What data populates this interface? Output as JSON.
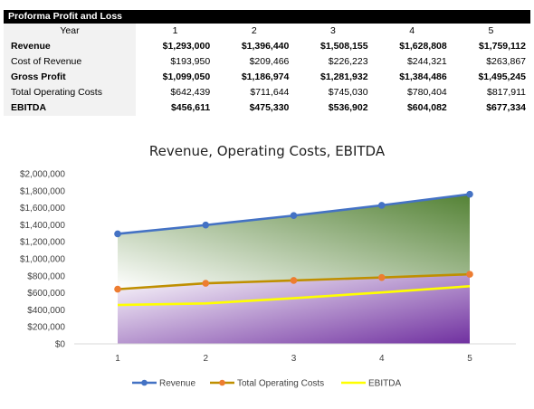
{
  "table": {
    "title": "Proforma Profit and Loss",
    "header_label": "Year",
    "years": [
      "1",
      "2",
      "3",
      "4",
      "5"
    ],
    "rows": [
      {
        "label": "Revenue",
        "bold": true,
        "values": [
          "$1,293,000",
          "$1,396,440",
          "$1,508,155",
          "$1,628,808",
          "$1,759,112"
        ]
      },
      {
        "label": "Cost of Revenue",
        "bold": false,
        "values": [
          "$193,950",
          "$209,466",
          "$226,223",
          "$244,321",
          "$263,867"
        ]
      },
      {
        "label": "Gross Profit",
        "bold": true,
        "values": [
          "$1,099,050",
          "$1,186,974",
          "$1,281,932",
          "$1,384,486",
          "$1,495,245"
        ]
      },
      {
        "label": "Total Operating Costs",
        "bold": false,
        "values": [
          "$642,439",
          "$711,644",
          "$745,030",
          "$780,404",
          "$817,911"
        ]
      },
      {
        "label": "EBITDA",
        "bold": true,
        "values": [
          "$456,611",
          "$475,330",
          "$536,902",
          "$604,082",
          "$677,334"
        ]
      }
    ]
  },
  "chart_data": {
    "type": "line",
    "title": "Revenue, Operating Costs, EBITDA",
    "xlabel": "",
    "ylabel": "",
    "categories": [
      "1",
      "2",
      "3",
      "4",
      "5"
    ],
    "ylim": [
      0,
      2000000
    ],
    "y_ticks": [
      "$0",
      "$200,000",
      "$400,000",
      "$600,000",
      "$800,000",
      "$1,000,000",
      "$1,200,000",
      "$1,400,000",
      "$1,600,000",
      "$1,800,000",
      "$2,000,000"
    ],
    "y_tick_values": [
      0,
      200000,
      400000,
      600000,
      800000,
      1000000,
      1200000,
      1400000,
      1600000,
      1800000,
      2000000
    ],
    "grid": false,
    "legend": "bottom",
    "series": [
      {
        "name": "Revenue",
        "color": "#4472c4",
        "marker": true,
        "values": [
          1293000,
          1396440,
          1508155,
          1628808,
          1759112
        ]
      },
      {
        "name": "Total Operating Costs",
        "color": "#bf8f00",
        "marker_color": "#ed7d31",
        "marker": true,
        "values": [
          642439,
          711644,
          745030,
          780404,
          817911
        ]
      },
      {
        "name": "EBITDA",
        "color": "#ffff00",
        "marker": false,
        "values": [
          456611,
          475330,
          536902,
          604082,
          677334
        ]
      }
    ],
    "fill_colors": {
      "upper_start": "#ffffff",
      "upper_end": "#548235",
      "lower_start": "#ffffff",
      "lower_end": "#7030a0"
    }
  }
}
